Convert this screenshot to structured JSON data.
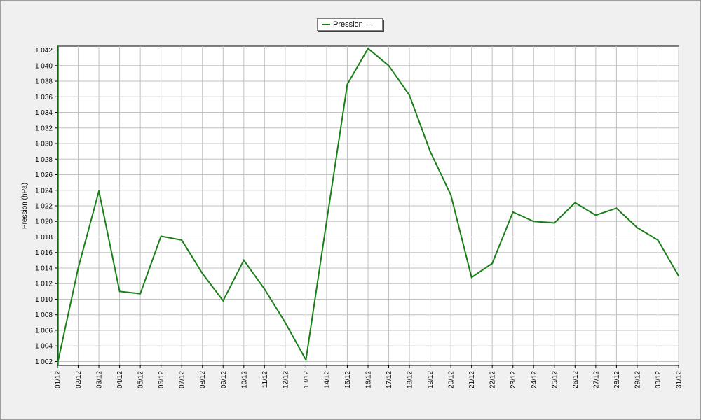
{
  "legend": {
    "series_name": "Pression"
  },
  "chart_data": {
    "type": "line",
    "title": "",
    "xlabel": "",
    "ylabel": "Pression (hPa)",
    "ylim": [
      1001.5,
      1042.5
    ],
    "grid": true,
    "legend_position": "top-center",
    "colors": {
      "series": "#1a7f1a",
      "grid": "#c0c0c0",
      "plot_bg": "#ffffff",
      "axis": "#000000"
    },
    "y_ticks": [
      1002,
      1004,
      1006,
      1008,
      1010,
      1012,
      1014,
      1016,
      1018,
      1020,
      1022,
      1024,
      1026,
      1028,
      1030,
      1032,
      1034,
      1036,
      1038,
      1040,
      1042
    ],
    "y_tick_labels": [
      "1 002",
      "1 004",
      "1 006",
      "1 008",
      "1 010",
      "1 012",
      "1 014",
      "1 016",
      "1 018",
      "1 020",
      "1 022",
      "1 024",
      "1 026",
      "1 028",
      "1 030",
      "1 032",
      "1 034",
      "1 036",
      "1 038",
      "1 040",
      "1 042"
    ],
    "categories": [
      "01/12",
      "02/12",
      "03/12",
      "04/12",
      "05/12",
      "06/12",
      "07/12",
      "08/12",
      "09/12",
      "10/12",
      "11/12",
      "12/12",
      "13/12",
      "14/12",
      "15/12",
      "16/12",
      "17/12",
      "18/12",
      "19/12",
      "20/12",
      "21/12",
      "22/12",
      "23/12",
      "24/12",
      "25/12",
      "26/12",
      "27/12",
      "28/12",
      "29/12",
      "30/12",
      "31/12"
    ],
    "series": [
      {
        "name": "Pression",
        "values": [
          1001.7,
          1014.0,
          1023.9,
          1011.0,
          1010.7,
          1018.1,
          1017.6,
          1013.3,
          1009.8,
          1015.0,
          1011.3,
          1007.0,
          1002.2,
          1020.0,
          1037.6,
          1042.2,
          1040.0,
          1036.2,
          1029.0,
          1023.4,
          1012.8,
          1014.6,
          1021.2,
          1020.0,
          1019.8,
          1022.4,
          1020.8,
          1021.7,
          1019.2,
          1017.6,
          1013.0
        ]
      }
    ]
  }
}
